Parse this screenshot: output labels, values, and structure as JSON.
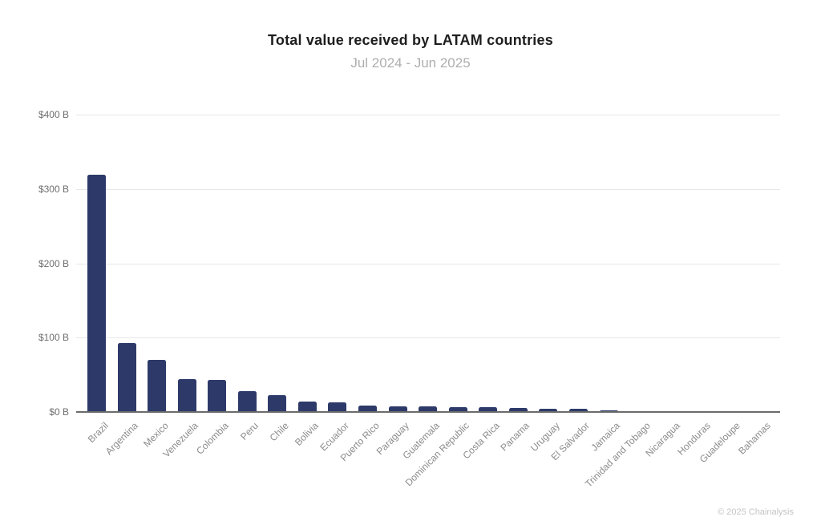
{
  "footer": {
    "copyright": "© 2025 Chainalysis"
  },
  "chart_data": {
    "type": "bar",
    "title": "Total value received by LATAM countries",
    "subtitle": "Jul 2024 - Jun 2025",
    "unit": "USD billions",
    "xlabel": "",
    "ylabel": "Total value received",
    "ylim": [
      0,
      400
    ],
    "grid": true,
    "legend": "none",
    "bar_color": "#2d3a69",
    "yticks": [
      0,
      100,
      200,
      300,
      400
    ],
    "ytick_labels": [
      "$0 B",
      "$100 B",
      "$200 B",
      "$300 B",
      "$400 B"
    ],
    "categories": [
      "Brazil",
      "Argentina",
      "Mexico",
      "Venezuela",
      "Colombia",
      "Peru",
      "Chile",
      "Bolivia",
      "Ecuador",
      "Puerto Rico",
      "Paraguay",
      "Guatemala",
      "Dominican Republic",
      "Costa Rica",
      "Panama",
      "Uruguay",
      "El Salvador",
      "Jamaica",
      "Trinidad and Tobago",
      "Nicaragua",
      "Honduras",
      "Guadeloupe",
      "Bahamas"
    ],
    "values": [
      319,
      93,
      70,
      44.5,
      43,
      28,
      22.5,
      14.5,
      13,
      8.6,
      7.6,
      7.5,
      6.6,
      6,
      5.4,
      4,
      3.8,
      2,
      0.9,
      0.6,
      0.5,
      0.3,
      0.2
    ]
  }
}
